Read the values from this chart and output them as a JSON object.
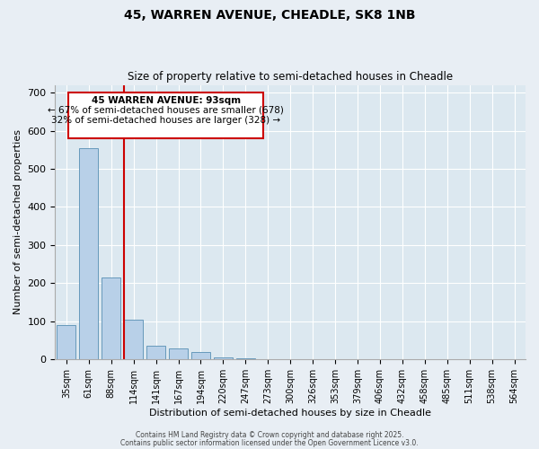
{
  "title_line1": "45, WARREN AVENUE, CHEADLE, SK8 1NB",
  "title_line2": "Size of property relative to semi-detached houses in Cheadle",
  "xlabel": "Distribution of semi-detached houses by size in Cheadle",
  "ylabel": "Number of semi-detached properties",
  "categories": [
    "35sqm",
    "61sqm",
    "88sqm",
    "114sqm",
    "141sqm",
    "167sqm",
    "194sqm",
    "220sqm",
    "247sqm",
    "273sqm",
    "300sqm",
    "326sqm",
    "353sqm",
    "379sqm",
    "406sqm",
    "432sqm",
    "458sqm",
    "485sqm",
    "511sqm",
    "538sqm",
    "564sqm"
  ],
  "values": [
    90,
    555,
    215,
    105,
    37,
    30,
    20,
    5,
    2,
    1,
    0,
    0,
    0,
    0,
    0,
    0,
    0,
    0,
    0,
    0,
    0
  ],
  "bar_color": "#b8d0e8",
  "bar_edge_color": "#6699bb",
  "background_color": "#dce8f0",
  "grid_color": "#ffffff",
  "fig_background_color": "#e8eef4",
  "vline_x_index": 2.58,
  "vline_color": "#cc0000",
  "annotation_text_line1": "45 WARREN AVENUE: 93sqm",
  "annotation_text_line2": "← 67% of semi-detached houses are smaller (678)",
  "annotation_text_line3": "32% of semi-detached houses are larger (328) →",
  "annotation_box_color": "#cc0000",
  "footer1": "Contains HM Land Registry data © Crown copyright and database right 2025.",
  "footer2": "Contains public sector information licensed under the Open Government Licence v3.0.",
  "ylim": [
    0,
    720
  ],
  "yticks": [
    0,
    100,
    200,
    300,
    400,
    500,
    600,
    700
  ]
}
